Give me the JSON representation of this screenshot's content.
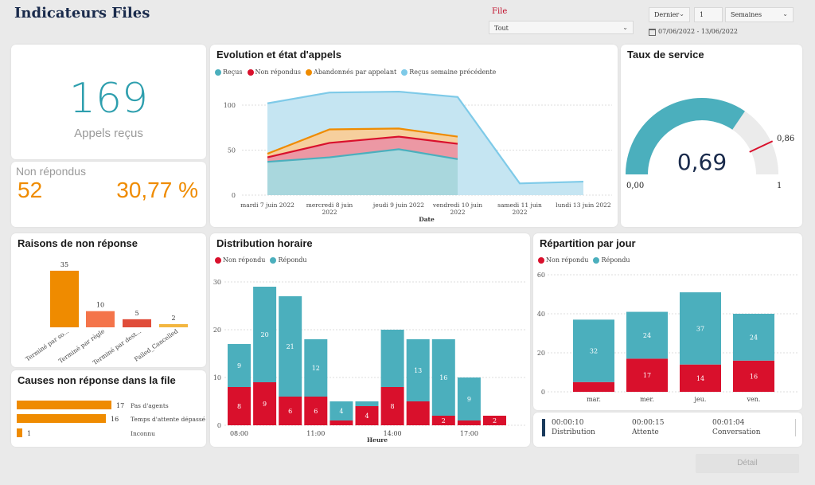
{
  "header": {
    "title": "Indicateurs Files",
    "file_label": "File",
    "file_value": "Tout",
    "period_mode": "Dernier",
    "period_count": "1",
    "period_unit": "Semaines",
    "date_range": "07/06/2022 - 13/06/2022"
  },
  "kpi": {
    "calls_value": "169",
    "calls_label": "Appels reçus",
    "unanswered_label": "Non répondus",
    "unanswered_value": "52",
    "unanswered_pct": "30,77 %"
  },
  "evolution": {
    "title": "Evolution et état d'appels",
    "legend": [
      "Reçus",
      "Non répondus",
      "Abandonnés par appelant",
      "Reçus semaine précédente"
    ],
    "colors": [
      "#4bafbd",
      "#d9102c",
      "#ef8b00",
      "#7ecae8"
    ],
    "chart_data": {
      "type": "area",
      "categories": [
        "mardi 7 juin 2022",
        "mercredi 8 juin 2022",
        "jeudi 9 juin 2022",
        "vendredi 10 juin 2022",
        "samedi 11 juin 2022",
        "lundi 13 juin 2022"
      ],
      "x_label_lines": [
        [
          "mardi 7 juin 2022"
        ],
        [
          "mercredi 8 juin",
          "2022"
        ],
        [
          "jeudi 9 juin 2022"
        ],
        [
          "vendredi 10 juin",
          "2022"
        ],
        [
          "samedi 11 juin",
          "2022"
        ],
        [
          "lundi 13 juin 2022"
        ]
      ],
      "xlabel": "Date",
      "yticks": [
        0,
        50,
        100
      ],
      "ylim": [
        0,
        120
      ],
      "series": [
        {
          "name": "Reçus semaine précédente",
          "values": [
            102,
            114,
            115,
            109,
            13,
            15
          ]
        },
        {
          "name": "Abandonnés par appelant",
          "values": [
            46,
            73,
            74,
            65,
            null,
            null
          ]
        },
        {
          "name": "Non répondus",
          "values": [
            42,
            58,
            65,
            57,
            null,
            null
          ]
        },
        {
          "name": "Reçus",
          "values": [
            37,
            42,
            51,
            40,
            null,
            null
          ]
        }
      ]
    }
  },
  "service": {
    "title": "Taux de service",
    "value_label": "0,69",
    "target_label": "0,86",
    "min_label": "0,00",
    "max_label": "1",
    "chart_data": {
      "type": "gauge",
      "value": 0.69,
      "target": 0.86,
      "min": 0,
      "max": 1
    }
  },
  "reasons": {
    "title": "Raisons de non réponse",
    "chart_data": {
      "type": "bar",
      "categories": [
        "Terminé par so...",
        "Terminé par règle",
        "Terminé par dest...",
        "Failed_Cancelled"
      ],
      "values": [
        35,
        10,
        5,
        2
      ],
      "labels": [
        "35",
        "10",
        "5",
        "2"
      ],
      "colors": [
        "#ef8b00",
        "#f4744a",
        "#e04d3a",
        "#f3b640"
      ],
      "ylim": [
        0,
        40
      ]
    }
  },
  "causes": {
    "title": "Causes non réponse dans la file",
    "chart_data": {
      "type": "bar",
      "orientation": "horizontal",
      "categories": [
        "Pas d'agents",
        "Temps d'attente dépassé",
        "Inconnu"
      ],
      "values": [
        17,
        16,
        1
      ],
      "labels": [
        "17",
        "16",
        "1"
      ],
      "xlim": [
        0,
        17
      ]
    }
  },
  "hourly": {
    "title": "Distribution horaire",
    "legend": [
      "Non répondu",
      "Répondu"
    ],
    "xlabel": "Heure",
    "chart_data": {
      "type": "bar",
      "stacked": true,
      "hours": [
        8,
        9,
        10,
        11,
        12,
        13,
        14,
        15,
        16,
        17,
        18
      ],
      "series": [
        {
          "name": "Non répondu",
          "values": [
            8,
            9,
            6,
            6,
            1,
            4,
            8,
            5,
            2,
            1,
            2
          ]
        },
        {
          "name": "Répondu",
          "values": [
            9,
            20,
            21,
            12,
            4,
            1,
            12,
            13,
            16,
            9,
            0
          ]
        }
      ],
      "labels_nr": [
        "8",
        "9",
        "6",
        "6",
        "",
        "4",
        "8",
        "",
        "2",
        "",
        "2"
      ],
      "labels_r": [
        "9",
        "20",
        "21",
        "12",
        "4",
        "",
        "",
        "13",
        "16",
        "9",
        ""
      ],
      "xticks": [
        "08:00",
        "11:00",
        "14:00",
        "17:00"
      ],
      "yticks": [
        0,
        10,
        20,
        30
      ],
      "ylim": [
        0,
        30
      ]
    }
  },
  "daily": {
    "title": "Répartition par jour",
    "legend": [
      "Non répondu",
      "Répondu"
    ],
    "chart_data": {
      "type": "bar",
      "stacked": true,
      "categories": [
        "mar.",
        "mer.",
        "jeu.",
        "ven."
      ],
      "series": [
        {
          "name": "Non répondu",
          "values": [
            5,
            17,
            14,
            16
          ]
        },
        {
          "name": "Répondu",
          "values": [
            32,
            24,
            37,
            24
          ]
        }
      ],
      "labels_nr": [
        "",
        "17",
        "14",
        "16"
      ],
      "labels_r": [
        "32",
        "24",
        "37",
        "24"
      ],
      "yticks": [
        0,
        20,
        40,
        60
      ],
      "ylim": [
        0,
        60
      ]
    }
  },
  "durations": [
    {
      "value": "00:00:10",
      "label": "Distribution"
    },
    {
      "value": "00:00:15",
      "label": "Attente"
    },
    {
      "value": "00:01:04",
      "label": "Conversation"
    }
  ],
  "detail_button": "Détail",
  "colors": {
    "teal": "#4bafbd",
    "red": "#d9102c",
    "orange": "#ef8b00",
    "light_blue": "#7ecae8",
    "navy": "#1a3a5c"
  }
}
